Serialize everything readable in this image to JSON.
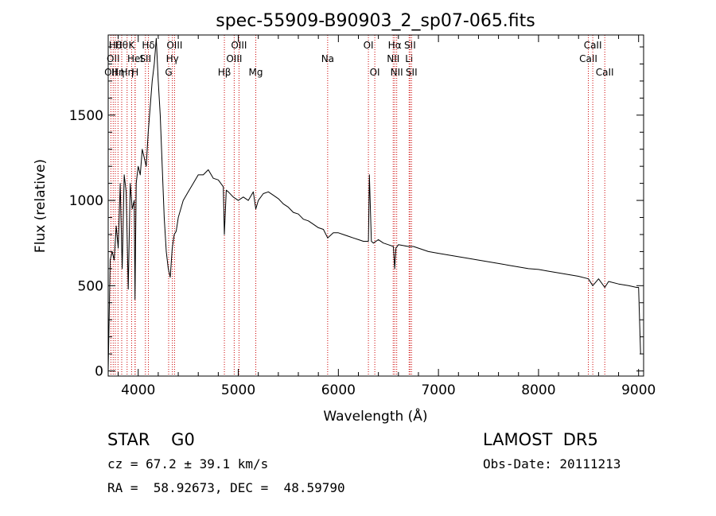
{
  "chart_data": {
    "type": "line",
    "title": "spec-55909-B90903_2_sp07-065.fits",
    "xlabel": "Wavelength (Å)",
    "ylabel": "Flux (relative)",
    "xlim": [
      3700,
      9050
    ],
    "ylim": [
      -30,
      1970
    ],
    "xticks": [
      4000,
      5000,
      6000,
      7000,
      8000,
      9000
    ],
    "yticks": [
      0,
      500,
      1000,
      1500
    ],
    "grid": false,
    "series": [
      {
        "x": [
          3700,
          3720,
          3740,
          3760,
          3780,
          3800,
          3820,
          3840,
          3860,
          3880,
          3900,
          3920,
          3940,
          3960,
          3968,
          3980,
          4000,
          4020,
          4040,
          4060,
          4080,
          4100,
          4120,
          4140,
          4160,
          4180,
          4200,
          4220,
          4240,
          4260,
          4280,
          4300,
          4320,
          4340,
          4360,
          4380,
          4400,
          4450,
          4500,
          4550,
          4600,
          4650,
          4700,
          4750,
          4800,
          4850,
          4861,
          4880,
          4900,
          4950,
          5000,
          5050,
          5100,
          5150,
          5175,
          5200,
          5250,
          5300,
          5350,
          5400,
          5450,
          5500,
          5550,
          5600,
          5650,
          5700,
          5750,
          5800,
          5850,
          5893,
          5950,
          6000,
          6050,
          6100,
          6150,
          6200,
          6250,
          6300,
          6310,
          6330,
          6350,
          6400,
          6450,
          6500,
          6550,
          6563,
          6575,
          6600,
          6650,
          6700,
          6750,
          6800,
          6900,
          7000,
          7100,
          7200,
          7300,
          7400,
          7500,
          7600,
          7700,
          7800,
          7900,
          8000,
          8100,
          8200,
          8300,
          8400,
          8498,
          8542,
          8600,
          8662,
          8700,
          8800,
          8900,
          8980,
          9000,
          9020
        ],
        "values": [
          0,
          650,
          700,
          650,
          850,
          720,
          1100,
          600,
          1150,
          1050,
          480,
          1100,
          950,
          1000,
          420,
          1100,
          1200,
          1150,
          1300,
          1250,
          1200,
          1400,
          1550,
          1700,
          1800,
          1950,
          1700,
          1500,
          1200,
          900,
          700,
          600,
          550,
          720,
          800,
          820,
          900,
          1000,
          1050,
          1100,
          1150,
          1150,
          1180,
          1130,
          1120,
          1080,
          800,
          1060,
          1050,
          1020,
          1000,
          1020,
          1000,
          1050,
          950,
          1000,
          1040,
          1050,
          1030,
          1010,
          980,
          960,
          930,
          920,
          890,
          880,
          860,
          840,
          830,
          780,
          810,
          810,
          800,
          790,
          780,
          770,
          760,
          760,
          1150,
          760,
          750,
          770,
          750,
          740,
          730,
          600,
          720,
          740,
          735,
          730,
          730,
          720,
          700,
          690,
          680,
          670,
          660,
          650,
          640,
          630,
          620,
          610,
          600,
          595,
          585,
          575,
          565,
          555,
          540,
          500,
          540,
          490,
          525,
          510,
          500,
          490,
          490,
          100
        ]
      }
    ],
    "lines": [
      {
        "x": 3727,
        "row": 3,
        "label": "OII"
      },
      {
        "x": 3750,
        "row": 2,
        "label": "OII"
      },
      {
        "x": 3771,
        "row": 1,
        "label": "Hθ"
      },
      {
        "x": 3798,
        "row": 3,
        "label": "Hη"
      },
      {
        "x": 3835,
        "row": 1,
        "label": "Hθ"
      },
      {
        "x": 3889,
        "row": 3,
        "label": "Hη"
      },
      {
        "x": 3934,
        "row": 1,
        "label": "K"
      },
      {
        "x": 3968,
        "row": 3,
        "label": "H"
      },
      {
        "x": 3970,
        "row": 2,
        "label": "HeI"
      },
      {
        "x": 4072,
        "row": 2,
        "label": "SII"
      },
      {
        "x": 4102,
        "row": 1,
        "label": "Hδ"
      },
      {
        "x": 4304,
        "row": 3,
        "label": "G"
      },
      {
        "x": 4341,
        "row": 2,
        "label": "Hγ"
      },
      {
        "x": 4363,
        "row": 1,
        "label": "OIII"
      },
      {
        "x": 4861,
        "row": 3,
        "label": "Hβ"
      },
      {
        "x": 4959,
        "row": 2,
        "label": "OIII"
      },
      {
        "x": 5007,
        "row": 1,
        "label": "OIII"
      },
      {
        "x": 5175,
        "row": 3,
        "label": "Mg"
      },
      {
        "x": 5893,
        "row": 2,
        "label": "Na"
      },
      {
        "x": 6300,
        "row": 1,
        "label": "OI"
      },
      {
        "x": 6364,
        "row": 3,
        "label": "OI"
      },
      {
        "x": 6548,
        "row": 2,
        "label": "NII"
      },
      {
        "x": 6563,
        "row": 1,
        "label": "Hα"
      },
      {
        "x": 6583,
        "row": 3,
        "label": "NII"
      },
      {
        "x": 6707,
        "row": 2,
        "label": "Li"
      },
      {
        "x": 6716,
        "row": 1,
        "label": "SII"
      },
      {
        "x": 6731,
        "row": 3,
        "label": "SII"
      },
      {
        "x": 8498,
        "row": 2,
        "label": "CaII"
      },
      {
        "x": 8542,
        "row": 1,
        "label": "CaII"
      },
      {
        "x": 8662,
        "row": 3,
        "label": "CaII"
      }
    ]
  },
  "info": {
    "class_label": "STAR    G0",
    "survey": "LAMOST  DR5",
    "cz": "cz = 67.2 ± 39.1 km/s",
    "obs_date": "Obs-Date: 20111213",
    "radec": "RA =  58.92673, DEC =  48.59790"
  },
  "colors": {
    "spectrum": "#000000",
    "line_markers": "#cc0000",
    "background": "#ffffff"
  }
}
